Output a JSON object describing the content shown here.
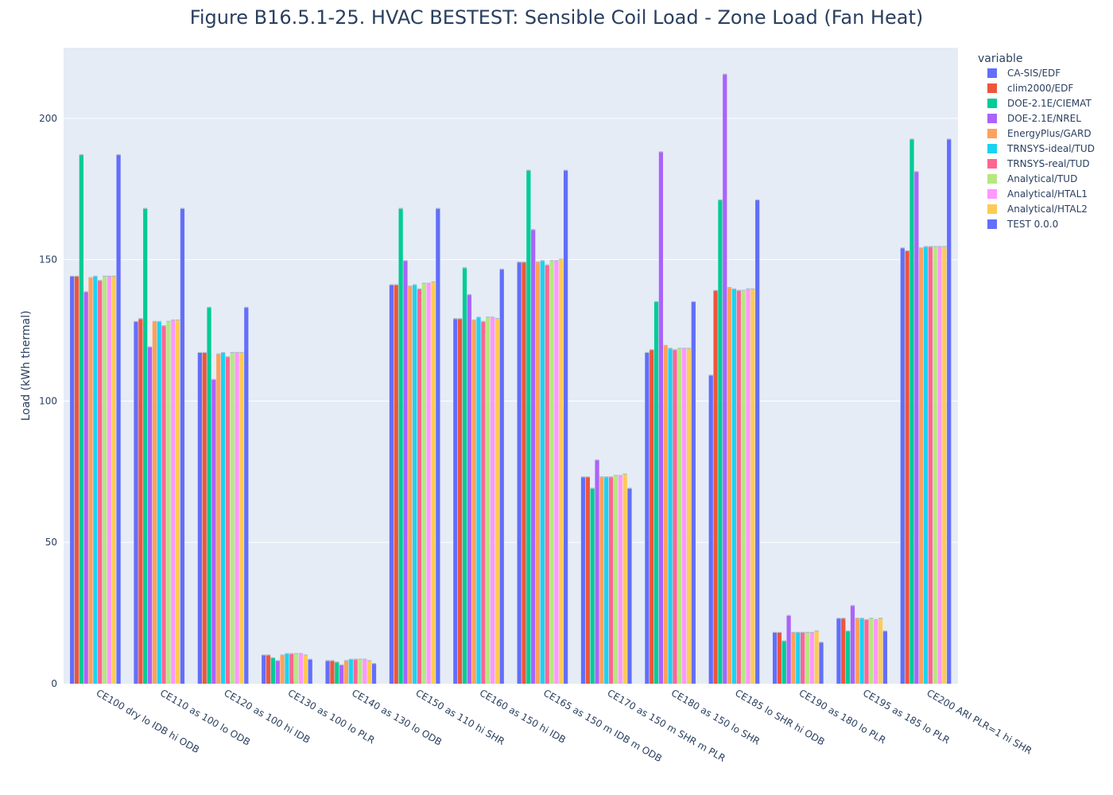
{
  "chart_data": {
    "type": "bar",
    "title": "Figure B16.5.1-25. HVAC BESTEST: Sensible Coil Load - Zone Load (Fan Heat)",
    "xlabel": "",
    "ylabel": "Load (kWh thermal)",
    "ylim": [
      0,
      225
    ],
    "yticks": [
      0,
      50,
      100,
      150,
      200
    ],
    "grid": true,
    "legend_title": "variable",
    "legend_position": "top-right",
    "categories": [
      "CE100 dry lo IDB hi ODB",
      "CE110 as 100 lo ODB",
      "CE120 as 100 hi IDB",
      "CE130 as 100 lo PLR",
      "CE140 as 130 lo ODB",
      "CE150 as 110 hi SHR",
      "CE160 as 150 hi IDB",
      "CE165 as 150 m IDB m ODB",
      "CE170 as 150 m SHR m PLR",
      "CE180 as 150 lo SHR",
      "CE185 lo SHR hi ODB",
      "CE190 as 180 lo PLR",
      "CE195 as 185 lo PLR",
      "CE200 ARI  PLR=1 hi SHR"
    ],
    "series": [
      {
        "name": "CA-SIS/EDF",
        "color": "#636efa",
        "values": [
          144,
          128,
          117,
          10,
          8,
          141,
          129,
          149,
          73,
          117,
          109,
          18,
          23,
          154
        ]
      },
      {
        "name": "clim2000/EDF",
        "color": "#EF553B",
        "values": [
          144,
          129,
          117,
          10,
          8,
          141,
          129,
          149,
          73,
          118,
          139,
          18,
          23,
          153
        ]
      },
      {
        "name": "DOE-2.1E/CIEMAT",
        "color": "#00cc96",
        "values": [
          187,
          168,
          133,
          9,
          7.5,
          168,
          147,
          181.5,
          69,
          135,
          171,
          15,
          18.5,
          192.5
        ]
      },
      {
        "name": "DOE-2.1E/NREL",
        "color": "#ab63fa",
        "values": [
          138.5,
          119,
          107.5,
          8,
          6.5,
          149.5,
          137.5,
          160.5,
          79,
          188,
          215.5,
          24,
          27.5,
          181
        ]
      },
      {
        "name": "EnergyPlus/GARD",
        "color": "#FFA15A",
        "values": [
          143.5,
          128,
          116.5,
          10,
          8,
          140.5,
          128.5,
          149,
          73,
          119.5,
          140,
          18,
          23,
          154
        ]
      },
      {
        "name": "TRNSYS-ideal/TUD",
        "color": "#19d3f3",
        "values": [
          144,
          128,
          117,
          10.5,
          8.5,
          141,
          129.5,
          149.5,
          73,
          118.5,
          139.5,
          18,
          23,
          154.5
        ]
      },
      {
        "name": "TRNSYS-real/TUD",
        "color": "#FF6692",
        "values": [
          142.5,
          126.5,
          115.5,
          10.5,
          8.5,
          139.5,
          128,
          148,
          73,
          118,
          139,
          18,
          22.5,
          154.5
        ]
      },
      {
        "name": "Analytical/TUD",
        "color": "#B6E880",
        "values": [
          144,
          128,
          117,
          10.5,
          8.5,
          141.5,
          129.5,
          149.5,
          73.5,
          118.5,
          139,
          18,
          23,
          154.5
        ]
      },
      {
        "name": "Analytical/HTAL1",
        "color": "#FF97FF",
        "values": [
          144,
          128.5,
          117,
          10.5,
          8.5,
          141.5,
          129.5,
          149.5,
          73.5,
          118.5,
          139.5,
          18,
          22.5,
          154.5
        ]
      },
      {
        "name": "Analytical/HTAL2",
        "color": "#FECB52",
        "values": [
          144,
          128.5,
          117,
          10,
          8,
          142,
          129,
          150,
          74,
          118.5,
          139.5,
          18.5,
          23,
          154.5
        ]
      },
      {
        "name": "TEST 0.0.0",
        "color": "#636efa",
        "values": [
          187,
          168,
          133,
          8.5,
          7,
          168,
          146.5,
          181.5,
          69,
          135,
          171,
          14.5,
          18.5,
          192.5
        ]
      }
    ]
  }
}
